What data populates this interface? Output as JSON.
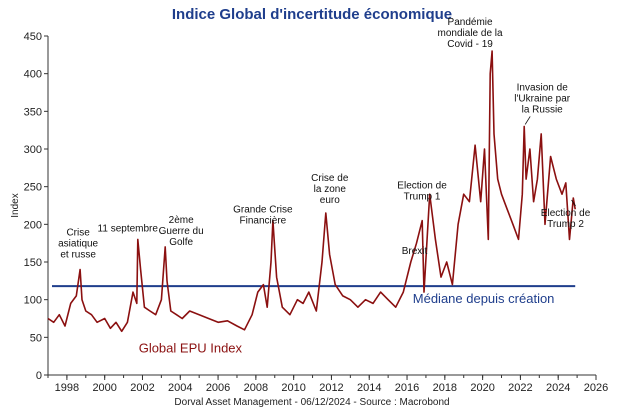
{
  "title": "Indice Global d'incertitude économique",
  "source": "Dorval Asset Management      - 06/12/2024   -   Source : Macrobond",
  "colors": {
    "series": "#8b1010",
    "median": "#1f3e8c",
    "title": "#1f3e8c",
    "axis": "#333333"
  },
  "chart_data": {
    "type": "line",
    "title": "Indice Global d'incertitude économique",
    "ylabel": "Index",
    "xlabel": "",
    "ylim": [
      0,
      450
    ],
    "xlim": [
      1997,
      2026
    ],
    "yticks": [
      0,
      50,
      100,
      150,
      200,
      250,
      300,
      350,
      400,
      450
    ],
    "xticks": [
      1998,
      2000,
      2002,
      2004,
      2006,
      2008,
      2010,
      2012,
      2014,
      2016,
      2018,
      2020,
      2022,
      2024,
      2026
    ],
    "grid": false,
    "series": [
      {
        "name": "Global EPU Index",
        "x": [
          1997.0,
          1997.3,
          1997.6,
          1997.9,
          1998.2,
          1998.5,
          1998.7,
          1998.8,
          1999.0,
          1999.3,
          1999.6,
          2000.0,
          2000.3,
          2000.6,
          2000.9,
          2001.2,
          2001.5,
          2001.7,
          2001.75,
          2001.9,
          2002.1,
          2002.4,
          2002.7,
          2003.0,
          2003.2,
          2003.3,
          2003.5,
          2003.8,
          2004.1,
          2004.5,
          2005.0,
          2005.5,
          2006.0,
          2006.5,
          2007.0,
          2007.4,
          2007.8,
          2008.1,
          2008.4,
          2008.6,
          2008.8,
          2008.9,
          2009.1,
          2009.4,
          2009.8,
          2010.2,
          2010.5,
          2010.8,
          2011.2,
          2011.5,
          2011.7,
          2011.9,
          2012.2,
          2012.6,
          2013.0,
          2013.4,
          2013.8,
          2014.2,
          2014.6,
          2015.0,
          2015.4,
          2015.8,
          2016.2,
          2016.5,
          2016.8,
          2016.9,
          2017.2,
          2017.5,
          2017.8,
          2018.1,
          2018.4,
          2018.7,
          2019.0,
          2019.3,
          2019.6,
          2019.9,
          2020.1,
          2020.3,
          2020.4,
          2020.5,
          2020.6,
          2020.8,
          2021.0,
          2021.3,
          2021.6,
          2021.9,
          2022.1,
          2022.2,
          2022.3,
          2022.5,
          2022.7,
          2022.9,
          2023.1,
          2023.3,
          2023.6,
          2023.9,
          2024.2,
          2024.4,
          2024.6,
          2024.8,
          2024.9
        ],
        "y": [
          75,
          70,
          80,
          65,
          95,
          105,
          140,
          100,
          85,
          80,
          70,
          75,
          62,
          70,
          58,
          70,
          110,
          95,
          180,
          140,
          90,
          85,
          80,
          100,
          170,
          125,
          85,
          80,
          75,
          85,
          80,
          75,
          70,
          72,
          65,
          60,
          80,
          110,
          120,
          90,
          150,
          205,
          130,
          90,
          80,
          100,
          95,
          110,
          85,
          150,
          215,
          160,
          120,
          105,
          100,
          90,
          100,
          95,
          110,
          100,
          90,
          110,
          150,
          175,
          205,
          110,
          240,
          180,
          130,
          150,
          120,
          200,
          240,
          230,
          305,
          230,
          300,
          180,
          400,
          430,
          320,
          260,
          240,
          220,
          200,
          180,
          240,
          330,
          260,
          300,
          230,
          260,
          320,
          200,
          290,
          260,
          240,
          255,
          180,
          235,
          220
        ]
      }
    ],
    "median": {
      "label": "Médiane depuis création",
      "value": 118
    },
    "annotations": [
      {
        "text": [
          "Crise",
          "asiatique",
          "et russe"
        ],
        "x": 1998.7,
        "y": 140
      },
      {
        "text": [
          "11 septembre"
        ],
        "x": 2001.75,
        "y": 180
      },
      {
        "text": [
          "2ème",
          "Guerre du",
          "Golfe"
        ],
        "x": 2003.2,
        "y": 170
      },
      {
        "text": [
          "Grande Crise",
          "Financière"
        ],
        "x": 2008.9,
        "y": 205
      },
      {
        "text": [
          "Crise de",
          "la zone",
          "euro"
        ],
        "x": 2011.7,
        "y": 215
      },
      {
        "text": [
          "Brexit"
        ],
        "x": 2016.5,
        "y": 175
      },
      {
        "text": [
          "Election de",
          "Trump 1"
        ],
        "x": 2016.9,
        "y": 205
      },
      {
        "text": [
          "Pandémie",
          "mondiale de la",
          "Covid - 19"
        ],
        "x": 2020.5,
        "y": 430
      },
      {
        "text": [
          "Invasion de",
          "l'Ukraine par",
          "la Russie"
        ],
        "x": 2022.2,
        "y": 330
      },
      {
        "text": [
          "Election de",
          "Trump 2"
        ],
        "x": 2024.6,
        "y": 235
      }
    ]
  }
}
